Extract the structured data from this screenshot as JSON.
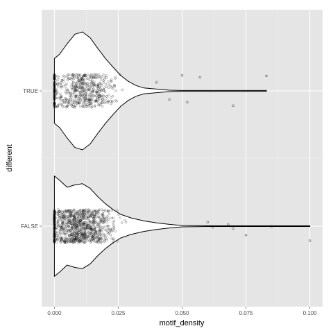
{
  "chart_data": {
    "type": "violin-jitter",
    "title": "",
    "xlabel": "motif_density",
    "ylabel": "different",
    "x_ticks": [
      0.0,
      0.025,
      0.05,
      0.075,
      0.1
    ],
    "x_tick_labels": [
      "0.000",
      "0.025",
      "0.050",
      "0.075",
      "0.100"
    ],
    "xlim": [
      -0.005,
      0.105
    ],
    "categories": [
      "FALSE",
      "TRUE"
    ],
    "grid": true,
    "legend": "none",
    "colors": {
      "panel_background": "#e5e5e5",
      "grid_major": "#ffffff",
      "grid_minor": "#f2f2f2",
      "points": "#000000",
      "violin_outline": "#000000"
    },
    "series": [
      {
        "category": "TRUE",
        "x_max": 0.083,
        "violin_profile": [
          [
            0.0,
            0.55
          ],
          [
            0.002,
            0.62
          ],
          [
            0.005,
            0.8
          ],
          [
            0.008,
            0.96
          ],
          [
            0.011,
            1.0
          ],
          [
            0.014,
            0.9
          ],
          [
            0.017,
            0.72
          ],
          [
            0.02,
            0.55
          ],
          [
            0.023,
            0.4
          ],
          [
            0.026,
            0.26
          ],
          [
            0.029,
            0.16
          ],
          [
            0.032,
            0.09
          ],
          [
            0.035,
            0.05
          ],
          [
            0.04,
            0.03
          ],
          [
            0.045,
            0.012
          ],
          [
            0.05,
            0.007
          ],
          [
            0.06,
            0.007
          ],
          [
            0.07,
            0.007
          ],
          [
            0.083,
            0.007
          ]
        ],
        "point_count": 560,
        "outliers": [
          0.04,
          0.045,
          0.05,
          0.052,
          0.057,
          0.07,
          0.083
        ]
      },
      {
        "category": "FALSE",
        "x_max": 0.1,
        "violin_profile": [
          [
            0.0,
            0.85
          ],
          [
            0.002,
            0.78
          ],
          [
            0.005,
            0.66
          ],
          [
            0.008,
            0.7
          ],
          [
            0.011,
            0.72
          ],
          [
            0.014,
            0.64
          ],
          [
            0.017,
            0.5
          ],
          [
            0.02,
            0.38
          ],
          [
            0.023,
            0.28
          ],
          [
            0.026,
            0.2
          ],
          [
            0.03,
            0.14
          ],
          [
            0.035,
            0.09
          ],
          [
            0.04,
            0.055
          ],
          [
            0.045,
            0.03
          ],
          [
            0.05,
            0.012
          ],
          [
            0.06,
            0.006
          ],
          [
            0.07,
            0.006
          ],
          [
            0.085,
            0.006
          ],
          [
            0.1,
            0.006
          ]
        ],
        "point_count": 900,
        "outliers": [
          0.06,
          0.062,
          0.068,
          0.07,
          0.075,
          0.085,
          0.1
        ]
      }
    ]
  }
}
